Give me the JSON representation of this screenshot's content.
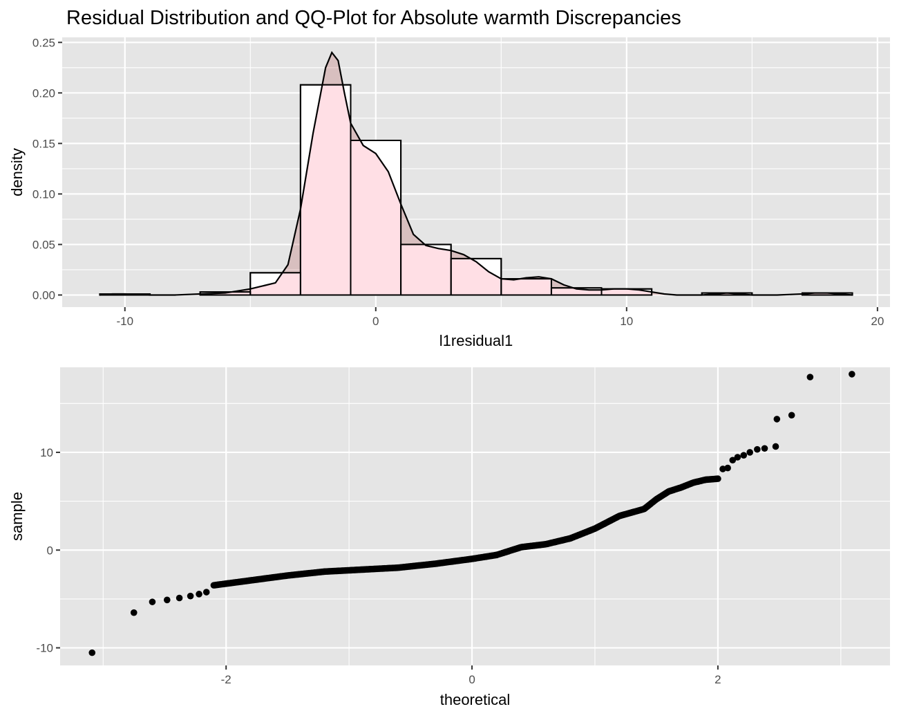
{
  "figure_title": "Residual Distribution and QQ-Plot for Absolute warmth Discrepancies",
  "colors": {
    "panel_background": "#e5e5e5",
    "grid": "#ffffff",
    "histogram_fill": "#ffffff",
    "histogram_outline": "#000000",
    "density_fill": "#ffc0cb",
    "density_line": "#000000",
    "points": "#000000"
  },
  "chart_data": [
    {
      "type": "bar",
      "subtype": "histogram_with_density",
      "title": "",
      "xlabel": "l1residual1",
      "ylabel": "density",
      "xlim": [
        -12.5,
        20.5
      ],
      "ylim": [
        -0.012,
        0.255
      ],
      "grid": true,
      "x_ticks": [
        -10,
        0,
        10,
        20
      ],
      "x_tick_labels": [
        "-10",
        "0",
        "10",
        "20"
      ],
      "y_ticks": [
        0,
        0.05,
        0.1,
        0.15,
        0.2,
        0.25
      ],
      "y_tick_labels": [
        "0.00",
        "0.05",
        "0.10",
        "0.15",
        "0.20",
        "0.25"
      ],
      "bins": [
        {
          "x0": -11,
          "x1": -9,
          "density": 0.001
        },
        {
          "x0": -9,
          "x1": -7,
          "density": 0.0
        },
        {
          "x0": -7,
          "x1": -5,
          "density": 0.003
        },
        {
          "x0": -5,
          "x1": -3,
          "density": 0.022
        },
        {
          "x0": -3,
          "x1": -1,
          "density": 0.208
        },
        {
          "x0": -1,
          "x1": 1,
          "density": 0.153
        },
        {
          "x0": 1,
          "x1": 3,
          "density": 0.05
        },
        {
          "x0": 3,
          "x1": 5,
          "density": 0.036
        },
        {
          "x0": 5,
          "x1": 7,
          "density": 0.016
        },
        {
          "x0": 7,
          "x1": 9,
          "density": 0.007
        },
        {
          "x0": 9,
          "x1": 11,
          "density": 0.006
        },
        {
          "x0": 11,
          "x1": 13,
          "density": 0.0
        },
        {
          "x0": 13,
          "x1": 15,
          "density": 0.002
        },
        {
          "x0": 15,
          "x1": 17,
          "density": 0.0
        },
        {
          "x0": 17,
          "x1": 19,
          "density": 0.002
        }
      ],
      "density_curve": {
        "x": [
          -11,
          -10.5,
          -10,
          -9,
          -8,
          -7,
          -6,
          -5,
          -4.5,
          -4,
          -3.5,
          -3,
          -2.5,
          -2,
          -1.75,
          -1.5,
          -1.25,
          -1,
          -0.5,
          0,
          0.5,
          1,
          1.5,
          2,
          2.5,
          3,
          3.5,
          4,
          4.5,
          5,
          5.5,
          6,
          6.5,
          7,
          7.5,
          8,
          8.5,
          9,
          9.5,
          10,
          10.5,
          11,
          11.5,
          12,
          13,
          13.5,
          14,
          14.5,
          15,
          16,
          17,
          17.5,
          18,
          18.5,
          19
        ],
        "y": [
          0.0,
          0.001,
          0.001,
          0.0,
          0.0,
          0.001,
          0.002,
          0.006,
          0.009,
          0.012,
          0.03,
          0.085,
          0.16,
          0.225,
          0.24,
          0.232,
          0.2,
          0.17,
          0.148,
          0.14,
          0.122,
          0.09,
          0.06,
          0.049,
          0.046,
          0.044,
          0.04,
          0.033,
          0.023,
          0.016,
          0.015,
          0.017,
          0.018,
          0.016,
          0.01,
          0.006,
          0.005,
          0.005,
          0.006,
          0.006,
          0.005,
          0.003,
          0.001,
          0.0,
          0.0,
          0.001,
          0.002,
          0.001,
          0.0,
          0.0,
          0.001,
          0.002,
          0.002,
          0.001,
          0.0
        ]
      }
    },
    {
      "type": "scatter",
      "subtype": "qq_plot",
      "title": "",
      "xlabel": "theoretical",
      "ylabel": "sample",
      "xlim": [
        -3.35,
        3.4
      ],
      "ylim": [
        -11.8,
        18.7
      ],
      "grid": true,
      "x_ticks": [
        -2,
        0,
        2
      ],
      "x_tick_labels": [
        "-2",
        "0",
        "2"
      ],
      "y_ticks": [
        -10,
        0,
        10
      ],
      "y_tick_labels": [
        "-10",
        "0",
        "10"
      ],
      "outlier_points": [
        {
          "x": -3.09,
          "y": -10.5
        },
        {
          "x": -2.75,
          "y": -6.4
        },
        {
          "x": -2.6,
          "y": -5.3
        },
        {
          "x": -2.48,
          "y": -5.1
        },
        {
          "x": -2.38,
          "y": -4.9
        },
        {
          "x": -2.29,
          "y": -4.7
        },
        {
          "x": -2.22,
          "y": -4.5
        },
        {
          "x": -2.16,
          "y": -4.3
        },
        {
          "x": 2.04,
          "y": 8.3
        },
        {
          "x": 2.08,
          "y": 8.4
        },
        {
          "x": 2.12,
          "y": 9.2
        },
        {
          "x": 2.16,
          "y": 9.5
        },
        {
          "x": 2.21,
          "y": 9.7
        },
        {
          "x": 2.26,
          "y": 10.0
        },
        {
          "x": 2.32,
          "y": 10.3
        },
        {
          "x": 2.38,
          "y": 10.4
        },
        {
          "x": 2.47,
          "y": 10.6
        },
        {
          "x": 2.48,
          "y": 13.4
        },
        {
          "x": 2.6,
          "y": 13.8
        },
        {
          "x": 2.75,
          "y": 17.7
        },
        {
          "x": 3.09,
          "y": 18.0
        }
      ],
      "dense_points": {
        "count": 420,
        "x_range": [
          -2.1,
          2.0
        ],
        "quantile_curve": {
          "x": [
            -2.1,
            -1.8,
            -1.5,
            -1.2,
            -0.9,
            -0.6,
            -0.3,
            0.0,
            0.2,
            0.4,
            0.6,
            0.8,
            1.0,
            1.2,
            1.4,
            1.5,
            1.6,
            1.7,
            1.8,
            1.9,
            2.0
          ],
          "y": [
            -3.6,
            -3.1,
            -2.6,
            -2.2,
            -2.0,
            -1.8,
            -1.4,
            -0.9,
            -0.5,
            0.3,
            0.6,
            1.2,
            2.2,
            3.5,
            4.2,
            5.2,
            6.0,
            6.4,
            6.9,
            7.2,
            7.3
          ]
        }
      }
    }
  ]
}
